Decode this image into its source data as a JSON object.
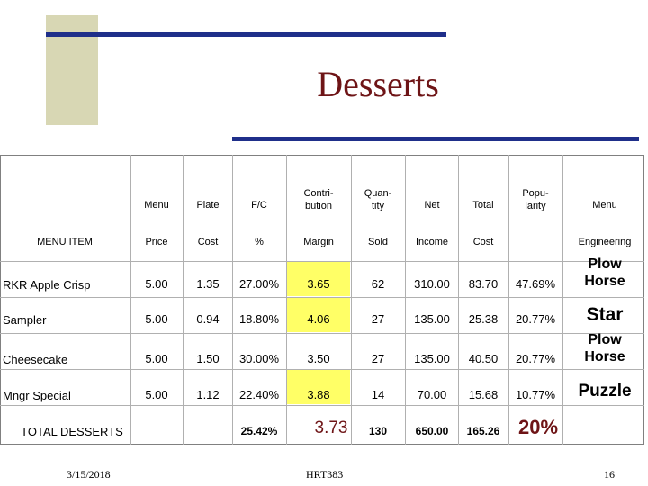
{
  "title": "Desserts",
  "headers": {
    "menu_top": "Menu",
    "plate_top": "Plate",
    "fc_top": "F/C",
    "contrib_top": "Contri-\nbution",
    "qty_top": "Quan-\ntity",
    "net_top": "Net",
    "total_top": "Total",
    "pop_top": "Popu-\nlarity",
    "eng_top": "Menu",
    "item": "MENU ITEM",
    "price": "Price",
    "cost": "Cost",
    "pct": "%",
    "margin": "Margin",
    "sold": "Sold",
    "income": "Income",
    "cost2": "Cost",
    "engineering": "Engineering"
  },
  "rows": [
    {
      "item": "RKR Apple Crisp",
      "price": "5.00",
      "cost": "1.35",
      "fc": "27.00%",
      "margin": "3.65",
      "sold": "62",
      "income": "310.00",
      "total_cost": "83.70",
      "popularity": "47.69%",
      "engineering": "Plow\nHorse"
    },
    {
      "item": "Sampler",
      "price": "5.00",
      "cost": "0.94",
      "fc": "18.80%",
      "margin": "4.06",
      "sold": "27",
      "income": "135.00",
      "total_cost": "25.38",
      "popularity": "20.77%",
      "engineering": "Star"
    },
    {
      "item": "Cheesecake",
      "price": "5.00",
      "cost": "1.50",
      "fc": "30.00%",
      "margin": "3.50",
      "sold": "27",
      "income": "135.00",
      "total_cost": "40.50",
      "popularity": "20.77%",
      "engineering": "Plow\nHorse"
    },
    {
      "item": "Mngr Special",
      "price": "5.00",
      "cost": "1.12",
      "fc": "22.40%",
      "margin": "3.88",
      "sold": "14",
      "income": "70.00",
      "total_cost": "15.68",
      "popularity": "10.77%",
      "engineering": "Puzzle"
    }
  ],
  "totals": {
    "label": "TOTAL DESSERTS",
    "fc": "25.42%",
    "margin": "3.73",
    "sold": "130",
    "income": "650.00",
    "total_cost": "165.26",
    "popularity": "20%"
  },
  "footer": {
    "date": "3/15/2018",
    "course": "HRT383",
    "page": "16"
  },
  "colors": {
    "title": "#6e1416",
    "accent_lines": "#1f2f8a",
    "deco_box": "#d8d7b4",
    "highlight": "#ffff66"
  }
}
